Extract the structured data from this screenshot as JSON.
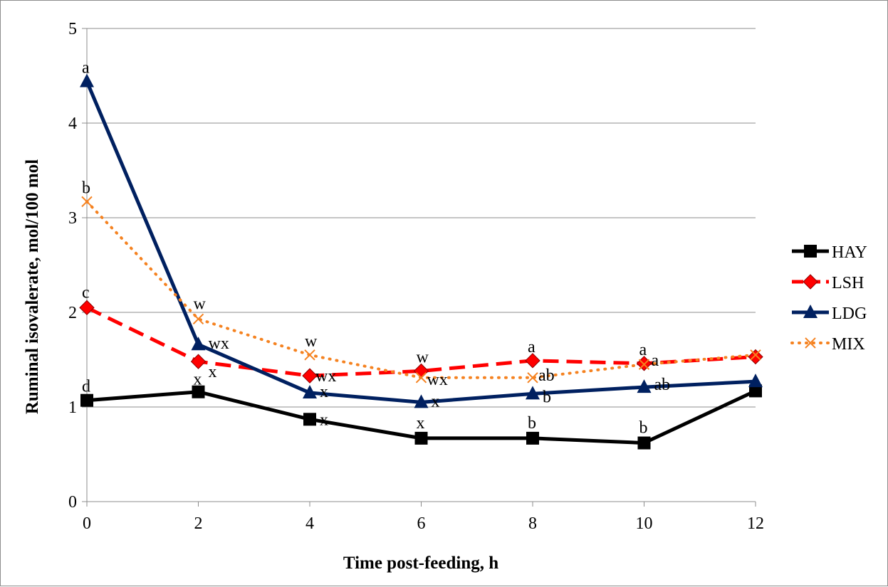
{
  "chart_data": {
    "type": "line",
    "xlabel": "Time post-feeding, h",
    "ylabel": "Ruminal isovalerate, mol/100 mol",
    "x": [
      0,
      2,
      4,
      6,
      8,
      10,
      12
    ],
    "xlim": [
      0,
      12
    ],
    "ylim": [
      0,
      5
    ],
    "xticks": [
      0,
      2,
      4,
      6,
      8,
      10,
      12
    ],
    "yticks": [
      0,
      1,
      2,
      3,
      4,
      5
    ],
    "grid": "horizontal major gridlines",
    "legend_position": "right",
    "series": [
      {
        "name": "HAY",
        "color": "#000000",
        "style": "solid",
        "marker": "square",
        "values": [
          1.07,
          1.16,
          0.87,
          0.67,
          0.67,
          0.62,
          1.17
        ]
      },
      {
        "name": "LSH",
        "color": "#ff0000",
        "style": "dashed",
        "marker": "diamond",
        "values": [
          2.05,
          1.48,
          1.33,
          1.38,
          1.49,
          1.46,
          1.53
        ]
      },
      {
        "name": "LDG",
        "color": "#002060",
        "style": "solid",
        "marker": "triangle",
        "values": [
          4.44,
          1.66,
          1.15,
          1.05,
          1.14,
          1.21,
          1.27
        ]
      },
      {
        "name": "MIX",
        "color": "#f58220",
        "style": "dotted",
        "marker": "x",
        "values": [
          3.17,
          1.93,
          1.55,
          1.31,
          1.31,
          1.45,
          1.55
        ]
      }
    ],
    "annotations": [
      {
        "text": "a",
        "x": 0,
        "y": 4.44,
        "series": "LDG"
      },
      {
        "text": "b",
        "x": 0,
        "y": 3.17,
        "series": "MIX"
      },
      {
        "text": "c",
        "x": 0,
        "y": 2.05,
        "series": "LSH"
      },
      {
        "text": "d",
        "x": 0,
        "y": 1.07,
        "series": "HAY"
      },
      {
        "text": "w",
        "x": 2,
        "y": 1.93,
        "series": "MIX"
      },
      {
        "text": "wx",
        "x": 2,
        "y": 1.66,
        "series": "LDG"
      },
      {
        "text": "x",
        "x": 2,
        "y": 1.48,
        "series": "LSH"
      },
      {
        "text": "x",
        "x": 2,
        "y": 1.16,
        "series": "HAY"
      },
      {
        "text": "w",
        "x": 4,
        "y": 1.55,
        "series": "MIX"
      },
      {
        "text": "wx",
        "x": 4,
        "y": 1.33,
        "series": "LSH"
      },
      {
        "text": "x",
        "x": 4,
        "y": 1.15,
        "series": "LDG"
      },
      {
        "text": "x",
        "x": 4,
        "y": 0.87,
        "series": "HAY"
      },
      {
        "text": "w",
        "x": 6,
        "y": 1.38,
        "series": "LSH"
      },
      {
        "text": "wx",
        "x": 6,
        "y": 1.31,
        "series": "MIX"
      },
      {
        "text": "x",
        "x": 6,
        "y": 1.05,
        "series": "LDG"
      },
      {
        "text": "x",
        "x": 6,
        "y": 0.67,
        "series": "HAY"
      },
      {
        "text": "a",
        "x": 8,
        "y": 1.49,
        "series": "LSH"
      },
      {
        "text": "ab",
        "x": 8,
        "y": 1.31,
        "series": "MIX"
      },
      {
        "text": "b",
        "x": 8,
        "y": 1.14,
        "series": "LDG"
      },
      {
        "text": "b",
        "x": 8,
        "y": 0.67,
        "series": "HAY"
      },
      {
        "text": "a",
        "x": 10,
        "y": 1.46,
        "series": "LSH"
      },
      {
        "text": "a",
        "x": 10,
        "y": 1.45,
        "series": "MIX"
      },
      {
        "text": "ab",
        "x": 10,
        "y": 1.21,
        "series": "LDG"
      },
      {
        "text": "b",
        "x": 10,
        "y": 0.62,
        "series": "HAY"
      }
    ]
  }
}
